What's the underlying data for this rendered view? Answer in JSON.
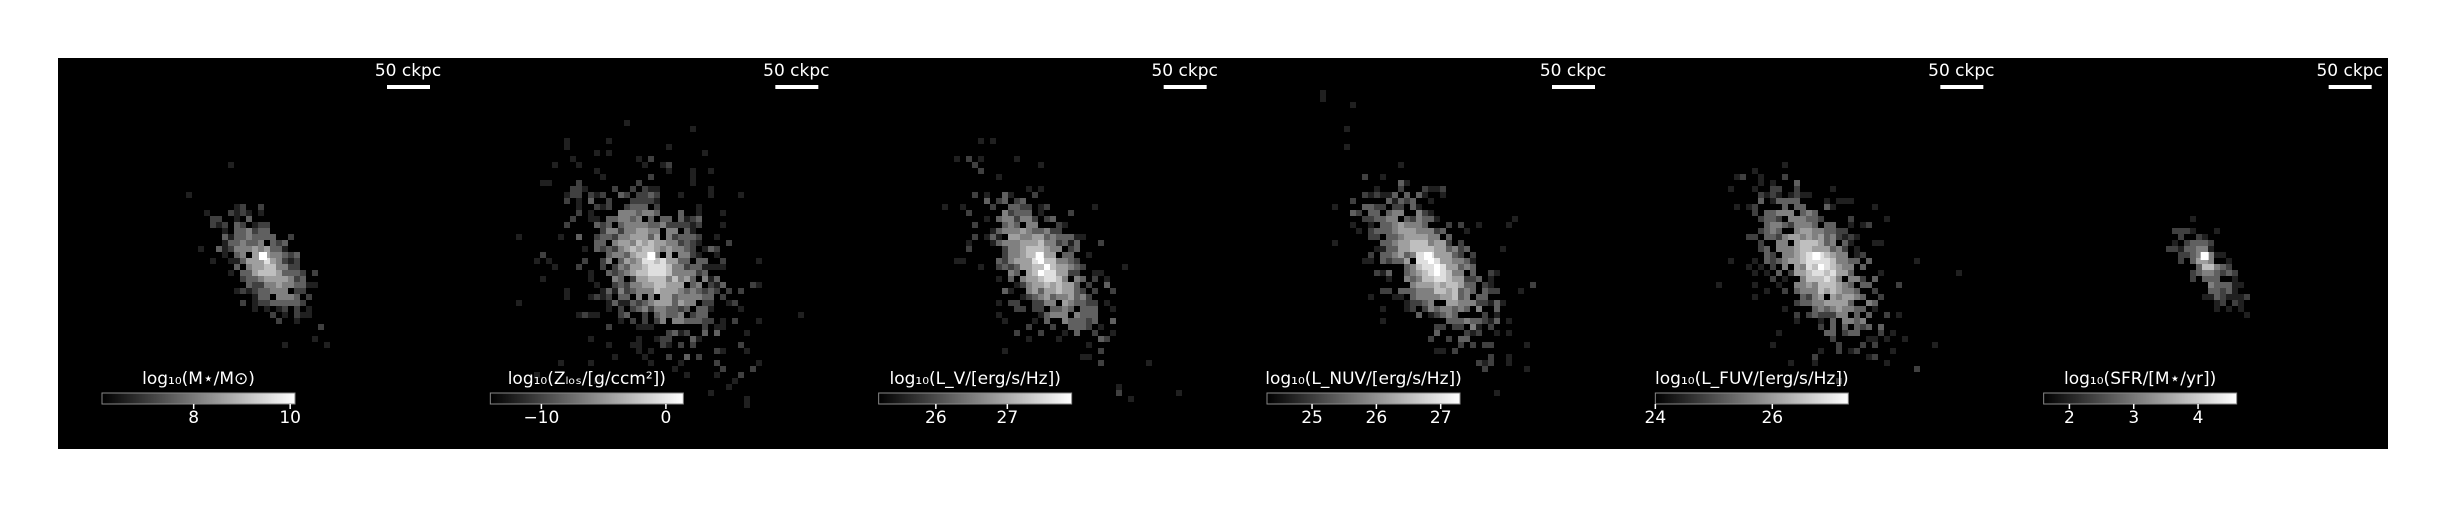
{
  "chart_data": [
    {
      "type": "image-map",
      "scalebar": "50 ckpc",
      "colorbar": {
        "label": "log₁₀(M⋆/M⊙)",
        "lim": [
          6.1,
          10.1
        ],
        "ticks": [
          8,
          10
        ]
      }
    },
    {
      "type": "image-map",
      "scalebar": "50 ckpc",
      "colorbar": {
        "label": "log₁₀(Zₗₒₛ/[g/ccm²])",
        "lim": [
          -14.1,
          1.4
        ],
        "ticks": [
          {
            "value": -10,
            "label": "−10"
          },
          0
        ]
      }
    },
    {
      "type": "image-map",
      "scalebar": "50 ckpc",
      "colorbar": {
        "label": "log₁₀(L_V/[erg/s/Hz])",
        "lim": [
          25.2,
          27.9
        ],
        "ticks": [
          26,
          27
        ]
      }
    },
    {
      "type": "image-map",
      "scalebar": "50 ckpc",
      "colorbar": {
        "label": "log₁₀(L_NUV/[erg/s/Hz])",
        "lim": [
          24.3,
          27.3
        ],
        "ticks": [
          25,
          26,
          27
        ]
      }
    },
    {
      "type": "image-map",
      "scalebar": "50 ckpc",
      "colorbar": {
        "label": "log₁₀(L_FUV/[erg/s/Hz])",
        "lim": [
          24,
          27.3
        ],
        "ticks": [
          24,
          26
        ]
      }
    },
    {
      "type": "image-map",
      "scalebar": "50 ckpc",
      "colorbar": {
        "label": "log₁₀(SFR/[M⋆/yr])",
        "lim": [
          1.6,
          4.6
        ],
        "ticks": [
          2,
          3,
          4
        ]
      }
    }
  ]
}
